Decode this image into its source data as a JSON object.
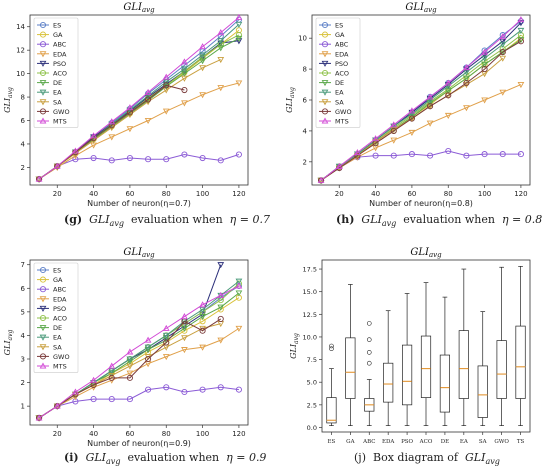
{
  "captions": [
    {
      "tag": "(g)",
      "pre": "GLI",
      "sub": "avg",
      "mid": "evaluation when",
      "eta": "η = 0.7"
    },
    {
      "tag": "(h)",
      "pre": "GLI",
      "sub": "avg",
      "mid": "evaluation when",
      "eta": "η = 0.8"
    },
    {
      "tag": "(i)",
      "pre": "GLI",
      "sub": "avg",
      "mid": "evaluation when",
      "eta": "η = 0.9"
    },
    {
      "tag": "(j)",
      "pre": "Box diagram of",
      "sub": "avg",
      "mid": "",
      "eta": "GLI"
    }
  ],
  "chart_data": [
    {
      "type": "line",
      "title": "GLI_avg",
      "xlabel": "Number of neuron(η=0.7)",
      "ylabel": "GLI_avg",
      "xlim": [
        5,
        125
      ],
      "ylim": [
        0.5,
        15
      ],
      "xticks": [
        20,
        40,
        60,
        80,
        100,
        120
      ],
      "yticks": [
        2,
        4,
        6,
        8,
        10,
        12,
        14
      ],
      "legend": "top-left",
      "x": [
        10,
        20,
        30,
        40,
        50,
        60,
        70,
        80,
        90,
        100,
        110,
        120
      ],
      "series": [
        {
          "name": "ES",
          "color": "#5b7fc7",
          "marker": "circle",
          "values": [
            1.0,
            2.1,
            3.3,
            4.6,
            5.8,
            7.0,
            8.3,
            9.5,
            10.7,
            11.9,
            13.2,
            14.6
          ]
        },
        {
          "name": "GA",
          "color": "#d9c23a",
          "marker": "circle",
          "values": [
            1.0,
            2.1,
            3.2,
            4.4,
            5.5,
            6.6,
            7.8,
            9.0,
            10.1,
            11.3,
            12.5,
            13.7
          ]
        },
        {
          "name": "ABC",
          "color": "#8b5bd6",
          "marker": "circle",
          "values": [
            1.0,
            2.1,
            2.7,
            2.8,
            2.6,
            2.8,
            2.7,
            2.7,
            3.1,
            2.8,
            2.6,
            3.1
          ]
        },
        {
          "name": "EDA",
          "color": "#e0a04a",
          "marker": "tri-down",
          "values": [
            1.0,
            2.0,
            3.0,
            3.9,
            4.6,
            5.3,
            6.0,
            6.8,
            7.5,
            8.2,
            8.8,
            9.2
          ]
        },
        {
          "name": "PSO",
          "color": "#2b2f7a",
          "marker": "tri-down",
          "values": [
            1.0,
            2.1,
            3.3,
            4.6,
            5.7,
            6.8,
            8.0,
            9.1,
            10.2,
            11.4,
            12.6,
            12.8
          ]
        },
        {
          "name": "ACO",
          "color": "#8fc24a",
          "marker": "circle",
          "values": [
            1.0,
            2.1,
            3.3,
            4.5,
            5.6,
            6.7,
            7.9,
            9.0,
            10.2,
            11.4,
            12.5,
            13.3
          ]
        },
        {
          "name": "DE",
          "color": "#5aa84a",
          "marker": "tri-down",
          "values": [
            1.0,
            2.1,
            3.2,
            4.4,
            5.5,
            6.6,
            7.7,
            8.9,
            10.0,
            11.1,
            12.2,
            13.0
          ]
        },
        {
          "name": "EA",
          "color": "#4a9a7a",
          "marker": "tri-down",
          "values": [
            1.0,
            2.1,
            3.3,
            4.5,
            5.7,
            6.9,
            8.1,
            9.3,
            10.4,
            11.6,
            12.8,
            14.2
          ]
        },
        {
          "name": "SA",
          "color": "#c9a040",
          "marker": "tri-down",
          "values": [
            1.0,
            2.1,
            3.2,
            4.3,
            5.4,
            6.5,
            7.6,
            8.6,
            9.6,
            10.5,
            11.2,
            null
          ]
        },
        {
          "name": "GWO",
          "color": "#7a3b3b",
          "marker": "circle",
          "values": [
            1.0,
            2.1,
            3.3,
            4.5,
            5.6,
            6.7,
            7.8,
            9.0,
            8.6,
            null,
            null,
            null
          ]
        },
        {
          "name": "MTS",
          "color": "#d24ad6",
          "marker": "tri-up",
          "values": [
            1.0,
            2.1,
            3.4,
            4.7,
            5.9,
            7.1,
            8.4,
            9.7,
            11.0,
            12.3,
            13.5,
            14.8
          ]
        }
      ]
    },
    {
      "type": "line",
      "title": "GLI_avg",
      "xlabel": "Number of neuron(η=0.8)",
      "ylabel": "GLI_avg",
      "xlim": [
        5,
        125
      ],
      "ylim": [
        0.5,
        11.5
      ],
      "xticks": [
        20,
        40,
        60,
        80,
        100,
        120
      ],
      "yticks": [
        2,
        4,
        6,
        8,
        10
      ],
      "legend": "top-left",
      "x": [
        10,
        20,
        30,
        40,
        50,
        60,
        70,
        80,
        90,
        100,
        110,
        120
      ],
      "series": [
        {
          "name": "ES",
          "color": "#5b7fc7",
          "marker": "circle",
          "values": [
            0.8,
            1.7,
            2.5,
            3.4,
            4.3,
            5.2,
            6.2,
            7.1,
            8.1,
            9.2,
            10.2,
            11.1
          ]
        },
        {
          "name": "GA",
          "color": "#d9c23a",
          "marker": "circle",
          "values": [
            0.8,
            1.6,
            2.4,
            3.2,
            4.0,
            4.9,
            5.7,
            6.6,
            7.4,
            8.3,
            9.1,
            10.0
          ]
        },
        {
          "name": "ABC",
          "color": "#8b5bd6",
          "marker": "circle",
          "values": [
            0.8,
            1.6,
            2.3,
            2.4,
            2.4,
            2.5,
            2.4,
            2.7,
            2.4,
            2.5,
            2.5,
            2.5
          ]
        },
        {
          "name": "EDA",
          "color": "#e0a04a",
          "marker": "tri-down",
          "values": [
            0.8,
            1.6,
            2.3,
            2.9,
            3.4,
            3.9,
            4.5,
            5.0,
            5.5,
            6.0,
            6.5,
            7.0
          ]
        },
        {
          "name": "PSO",
          "color": "#2b2f7a",
          "marker": "tri-down",
          "values": [
            0.8,
            1.7,
            2.5,
            3.4,
            4.3,
            5.2,
            6.1,
            7.0,
            8.0,
            8.9,
            9.8,
            11.0
          ]
        },
        {
          "name": "ACO",
          "color": "#8fc24a",
          "marker": "circle",
          "values": [
            0.8,
            1.7,
            2.5,
            3.3,
            4.2,
            5.0,
            5.9,
            6.7,
            7.6,
            8.5,
            9.3,
            10.2
          ]
        },
        {
          "name": "DE",
          "color": "#5aa84a",
          "marker": "tri-down",
          "values": [
            0.8,
            1.6,
            2.4,
            3.3,
            4.1,
            4.9,
            5.8,
            6.6,
            7.4,
            8.3,
            9.1,
            9.9
          ]
        },
        {
          "name": "EA",
          "color": "#4a9a7a",
          "marker": "tri-down",
          "values": [
            0.8,
            1.7,
            2.5,
            3.4,
            4.3,
            5.1,
            6.0,
            6.9,
            7.8,
            8.7,
            9.6,
            10.5
          ]
        },
        {
          "name": "SA",
          "color": "#c9a040",
          "marker": "tri-down",
          "values": [
            0.8,
            1.6,
            2.4,
            3.3,
            4.1,
            4.8,
            5.6,
            6.3,
            7.0,
            7.7,
            8.7,
            null
          ]
        },
        {
          "name": "GWO",
          "color": "#7a3b3b",
          "marker": "circle",
          "values": [
            0.8,
            1.6,
            2.4,
            3.2,
            4.0,
            4.8,
            5.6,
            6.3,
            7.1,
            8.0,
            9.1,
            9.8
          ]
        },
        {
          "name": "MTS",
          "color": "#d24ad6",
          "marker": "tri-up",
          "values": [
            0.8,
            1.7,
            2.6,
            3.5,
            4.4,
            5.3,
            6.2,
            7.1,
            8.1,
            9.1,
            10.1,
            11.2
          ]
        }
      ]
    },
    {
      "type": "line",
      "title": "GLI_avg",
      "xlabel": "Number of neuron(η=0.9)",
      "ylabel": "GLI_avg",
      "xlim": [
        5,
        125
      ],
      "ylim": [
        0.2,
        7.2
      ],
      "xticks": [
        20,
        40,
        60,
        80,
        100,
        120
      ],
      "yticks": [
        1,
        2,
        3,
        4,
        5,
        6,
        7
      ],
      "legend": "top-left",
      "x": [
        10,
        20,
        30,
        40,
        50,
        60,
        70,
        80,
        90,
        100,
        110,
        120
      ],
      "series": [
        {
          "name": "ES",
          "color": "#5b7fc7",
          "marker": "circle",
          "values": [
            0.5,
            1.0,
            1.5,
            2.0,
            2.5,
            3.0,
            3.5,
            4.0,
            4.5,
            5.0,
            5.6,
            6.1
          ]
        },
        {
          "name": "GA",
          "color": "#d9c23a",
          "marker": "circle",
          "values": [
            0.5,
            1.0,
            1.5,
            1.9,
            2.4,
            2.8,
            3.3,
            3.7,
            4.2,
            4.6,
            5.1,
            5.6
          ]
        },
        {
          "name": "ABC",
          "color": "#8b5bd6",
          "marker": "circle",
          "values": [
            0.5,
            1.0,
            1.2,
            1.3,
            1.3,
            1.3,
            1.7,
            1.8,
            1.6,
            1.7,
            1.8,
            1.7
          ]
        },
        {
          "name": "EDA",
          "color": "#e0a04a",
          "marker": "tri-down",
          "values": [
            0.5,
            1.0,
            1.4,
            1.8,
            2.1,
            2.4,
            2.8,
            3.1,
            3.4,
            3.5,
            3.8,
            4.3
          ]
        },
        {
          "name": "PSO",
          "color": "#2b2f7a",
          "marker": "tri-down",
          "values": [
            0.5,
            1.0,
            1.5,
            2.0,
            2.5,
            3.0,
            3.4,
            3.9,
            4.4,
            4.9,
            7.0,
            null
          ]
        },
        {
          "name": "ACO",
          "color": "#8fc24a",
          "marker": "circle",
          "values": [
            0.5,
            1.0,
            1.5,
            2.0,
            2.5,
            3.0,
            3.5,
            4.0,
            4.5,
            5.0,
            5.5,
            6.2
          ]
        },
        {
          "name": "DE",
          "color": "#5aa84a",
          "marker": "tri-down",
          "values": [
            0.5,
            1.0,
            1.5,
            2.0,
            2.4,
            2.9,
            3.4,
            3.8,
            4.3,
            4.8,
            5.2,
            5.8
          ]
        },
        {
          "name": "EA",
          "color": "#4a9a7a",
          "marker": "tri-down",
          "values": [
            0.5,
            1.0,
            1.5,
            2.0,
            2.5,
            3.0,
            3.5,
            4.0,
            4.6,
            5.1,
            5.7,
            6.3
          ]
        },
        {
          "name": "SA",
          "color": "#c9a040",
          "marker": "tri-down",
          "values": [
            0.5,
            1.0,
            1.5,
            1.9,
            2.3,
            2.7,
            3.1,
            3.5,
            3.9,
            4.3,
            4.5,
            null
          ]
        },
        {
          "name": "GWO",
          "color": "#7a3b3b",
          "marker": "circle",
          "values": [
            0.5,
            1.0,
            1.5,
            1.9,
            2.2,
            2.2,
            3.0,
            3.7,
            4.6,
            4.2,
            4.7,
            null
          ]
        },
        {
          "name": "MTS",
          "color": "#d24ad6",
          "marker": "tri-up",
          "values": [
            0.5,
            1.0,
            1.6,
            2.1,
            2.7,
            3.3,
            3.8,
            4.3,
            4.8,
            5.3,
            5.7,
            6.1
          ]
        }
      ]
    },
    {
      "type": "box",
      "title": "GLI_avg",
      "ylabel": "GLI_avg",
      "ylim": [
        -0.5,
        18.5
      ],
      "yticks": [
        0.0,
        2.5,
        5.0,
        7.5,
        10.0,
        12.5,
        15.0,
        17.5
      ],
      "categories": [
        "ES",
        "GA",
        "ABC",
        "EDA",
        "PSO",
        "ACO",
        "DE",
        "EA",
        "SA",
        "GWO",
        "TS"
      ],
      "boxes": [
        {
          "min": 0.2,
          "q1": 0.5,
          "median": 0.8,
          "q3": 3.3,
          "max": 6.5,
          "outliers": [
            8.7,
            9.0
          ]
        },
        {
          "min": 0.2,
          "q1": 3.2,
          "median": 6.1,
          "q3": 9.9,
          "max": 15.8,
          "outliers": []
        },
        {
          "min": 0.2,
          "q1": 1.8,
          "median": 2.5,
          "q3": 3.2,
          "max": 5.3,
          "outliers": [
            7.1,
            8.3,
            9.7,
            11.5
          ]
        },
        {
          "min": 0.2,
          "q1": 2.8,
          "median": 4.8,
          "q3": 7.1,
          "max": 12.9,
          "outliers": []
        },
        {
          "min": 0.2,
          "q1": 2.5,
          "median": 5.1,
          "q3": 9.1,
          "max": 14.8,
          "outliers": []
        },
        {
          "min": 0.2,
          "q1": 3.3,
          "median": 6.5,
          "q3": 10.1,
          "max": 16.0,
          "outliers": []
        },
        {
          "min": 0.2,
          "q1": 1.7,
          "median": 4.4,
          "q3": 8.0,
          "max": 14.4,
          "outliers": []
        },
        {
          "min": 0.2,
          "q1": 3.2,
          "median": 6.5,
          "q3": 10.7,
          "max": 17.5,
          "outliers": []
        },
        {
          "min": 0.2,
          "q1": 1.1,
          "median": 3.6,
          "q3": 6.8,
          "max": 12.8,
          "outliers": []
        },
        {
          "min": 0.2,
          "q1": 3.2,
          "median": 5.9,
          "q3": 9.6,
          "max": 17.7,
          "outliers": []
        },
        {
          "min": 0.2,
          "q1": 3.2,
          "median": 6.7,
          "q3": 11.2,
          "max": 17.8,
          "outliers": []
        }
      ]
    }
  ]
}
